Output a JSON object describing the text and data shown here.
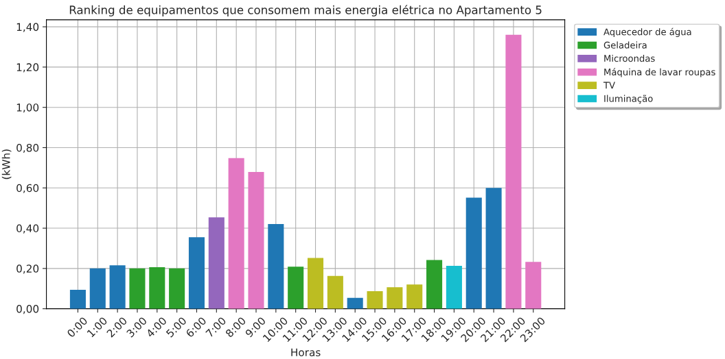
{
  "chart_data": {
    "type": "bar",
    "title": "Ranking de equipamentos que consomem mais energia elétrica no Apartamento 5",
    "xlabel": "Horas",
    "ylabel": "(kWh)",
    "categories": [
      "0:00",
      "1:00",
      "2:00",
      "3:00",
      "4:00",
      "5:00",
      "6:00",
      "7:00",
      "8:00",
      "9:00",
      "10:00",
      "11:00",
      "12:00",
      "13:00",
      "14:00",
      "15:00",
      "16:00",
      "17:00",
      "18:00",
      "19:00",
      "20:00",
      "21:00",
      "22:00",
      "23:00"
    ],
    "series": [
      {
        "name": "Aquecedor de água",
        "color": "#1f77b4",
        "values": [
          0.094,
          0.2,
          0.216,
          null,
          null,
          null,
          0.355,
          null,
          null,
          null,
          0.421,
          null,
          null,
          null,
          0.054,
          null,
          null,
          null,
          null,
          null,
          0.552,
          0.6,
          null,
          null
        ]
      },
      {
        "name": "Geladeira",
        "color": "#2ca02c",
        "values": [
          null,
          null,
          null,
          0.2,
          0.206,
          0.2,
          null,
          null,
          null,
          null,
          null,
          0.209,
          null,
          null,
          null,
          null,
          null,
          null,
          0.242,
          null,
          null,
          null,
          null,
          null
        ]
      },
      {
        "name": "Microondas",
        "color": "#9467bd",
        "values": [
          null,
          null,
          null,
          null,
          null,
          null,
          null,
          0.454,
          null,
          null,
          null,
          null,
          null,
          null,
          null,
          null,
          null,
          null,
          null,
          null,
          null,
          null,
          null,
          null
        ]
      },
      {
        "name": "Máquina de lavar roupas",
        "color": "#e377c2",
        "values": [
          null,
          null,
          null,
          null,
          null,
          null,
          null,
          null,
          0.748,
          0.679,
          null,
          null,
          null,
          null,
          null,
          null,
          null,
          null,
          null,
          null,
          null,
          null,
          1.36,
          0.233
        ]
      },
      {
        "name": "TV",
        "color": "#bcbd22",
        "values": [
          null,
          null,
          null,
          null,
          null,
          null,
          null,
          null,
          null,
          null,
          null,
          null,
          0.252,
          0.163,
          null,
          0.087,
          0.107,
          0.12,
          null,
          null,
          null,
          null,
          null,
          null
        ]
      },
      {
        "name": "Iluminação",
        "color": "#17becf",
        "values": [
          null,
          null,
          null,
          null,
          null,
          null,
          null,
          null,
          null,
          null,
          null,
          null,
          null,
          null,
          null,
          null,
          null,
          null,
          null,
          0.213,
          null,
          null,
          null,
          null
        ]
      }
    ],
    "ylim": [
      0,
      1.435
    ],
    "yticks": [
      {
        "value": 0,
        "label": "0,00"
      },
      {
        "value": 0.2,
        "label": "0,20"
      },
      {
        "value": 0.4,
        "label": "0,40"
      },
      {
        "value": 0.6,
        "label": "0,60"
      },
      {
        "value": 0.8,
        "label": "0,80"
      },
      {
        "value": 1.0,
        "label": "1,00"
      },
      {
        "value": 1.2,
        "label": "1,20"
      },
      {
        "value": 1.4,
        "label": "1,40"
      }
    ],
    "grid": true,
    "legend": "top right"
  }
}
